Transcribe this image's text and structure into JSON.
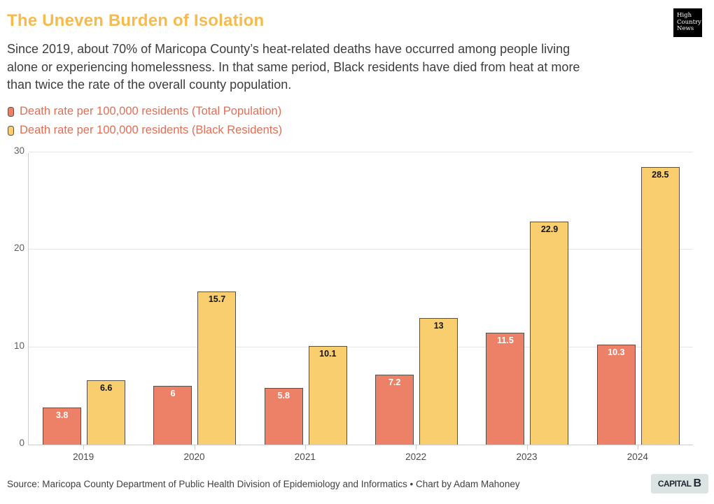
{
  "header": {
    "title": "The Uneven Burden of Isolation",
    "subtitle_lines": [
      "Since 2019, about 70% of Maricopa County’s heat-related deaths have occurred among people living",
      "alone or experiencing homelessness. In that same period, Black residents have died from heat at more",
      "than twice the rate of the overall county population."
    ],
    "logo_lines": [
      "High",
      "Country",
      "News"
    ]
  },
  "legend": [
    {
      "label": "Death rate per 100,000 residents (Total Population)",
      "color": "#EC8168"
    },
    {
      "label": "Death rate per 100,000 residents (Black Residents)",
      "color": "#F9CE6E"
    }
  ],
  "chart_data": {
    "type": "bar",
    "categories": [
      "2019",
      "2020",
      "2021",
      "2022",
      "2023",
      "2024"
    ],
    "series": [
      {
        "name": "Death rate per 100,000 residents (Total Population)",
        "color": "#EC8168",
        "label_color": "#ffffff",
        "values": [
          3.8,
          6,
          5.8,
          7.2,
          11.5,
          10.3
        ]
      },
      {
        "name": "Death rate per 100,000 residents (Black Residents)",
        "color": "#F9CE6E",
        "label_color": "#141414",
        "values": [
          6.6,
          15.7,
          10.1,
          13,
          22.9,
          28.5
        ]
      }
    ],
    "ylim": [
      0,
      30
    ],
    "yticks": [
      0,
      10,
      20,
      30
    ],
    "grid": true,
    "legend_position": "top-left",
    "bar_stroke": "#55514a"
  },
  "footer": {
    "source": "Source: Maricopa County Department of Public Health Division of Epidemiology and Informatics • Chart by Adam Mahoney",
    "badge_text": "CAPITAL",
    "badge_b": "B"
  }
}
